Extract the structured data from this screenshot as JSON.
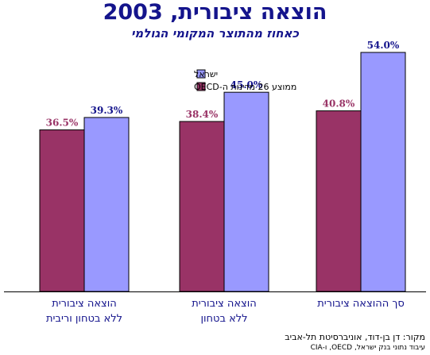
{
  "header": {
    "title": "הוצאה ציבורית, 2003",
    "subtitle": "כאחוז מהתוצר המקומי הגולמי"
  },
  "footer": {
    "source_line1": "מקור: דן בן-דוד, אוניברסיטת תל-אביב",
    "source_line2": "עיבוד נתוני בנק ישראל, OECD, ו-CIA"
  },
  "chart_data": {
    "type": "bar",
    "title": "הוצאה ציבורית, 2003",
    "subtitle": "כאחוז מהתוצר המקומי הגולמי",
    "categories": [
      [
        "הוצאה ציבורית",
        "ללא בטחון וריבית"
      ],
      [
        "הוצאה ציבורית",
        "ללא בטחון"
      ],
      [
        "סך ההוצאה ציבורית"
      ]
    ],
    "series": [
      {
        "name": "ממוצע 26 מדינות ה-OECD",
        "values": [
          36.5,
          38.4,
          40.8
        ],
        "labels": [
          "36.5%",
          "38.4%",
          "40.8%"
        ],
        "color": "#993366"
      },
      {
        "name": "ישראל",
        "values": [
          39.3,
          45.0,
          54.0
        ],
        "labels": [
          "39.3%",
          "45.0%",
          "54.0%"
        ],
        "color": "#9999ff"
      }
    ],
    "legend_order": [
      1,
      0
    ],
    "ylim": [
      0,
      54.0
    ],
    "grid": false,
    "legend_position": "top-left"
  }
}
